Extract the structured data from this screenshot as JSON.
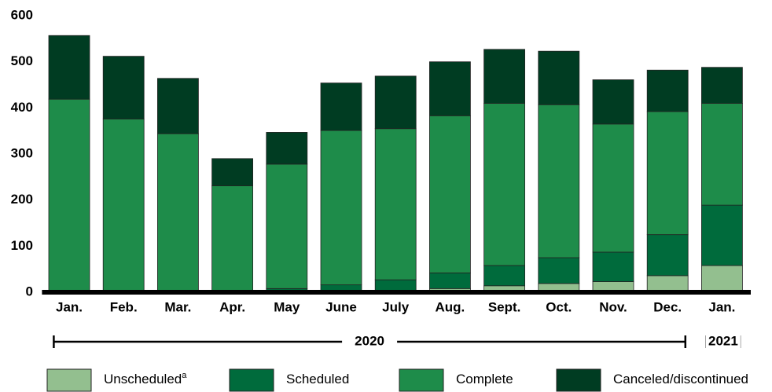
{
  "chart_data": {
    "type": "stacked_bar",
    "categories": [
      "Jan.",
      "Feb.",
      "Mar.",
      "Apr.",
      "May",
      "June",
      "July",
      "Aug.",
      "Sept.",
      "Oct.",
      "Nov.",
      "Dec.",
      "Jan."
    ],
    "years": [
      {
        "label": "2020",
        "from": 0,
        "to": 11
      },
      {
        "label": "2021",
        "from": 12,
        "to": 12
      }
    ],
    "legend_footnote": "a",
    "series": [
      {
        "name": "Unscheduled",
        "color": "#93bf8f",
        "values": [
          0,
          0,
          0,
          0,
          1,
          1,
          4,
          8,
          14,
          19,
          23,
          36,
          58
        ]
      },
      {
        "name": "Scheduled",
        "color": "#006b3c",
        "values": [
          2,
          3,
          4,
          4,
          7,
          15,
          23,
          34,
          44,
          56,
          64,
          89,
          131
        ]
      },
      {
        "name": "Complete",
        "color": "#1e8c4a",
        "values": [
          417,
          373,
          340,
          227,
          270,
          335,
          328,
          341,
          352,
          332,
          278,
          267,
          221
        ]
      },
      {
        "name": "Canceled/discontinued",
        "color": "#003c22",
        "values": [
          138,
          136,
          120,
          59,
          69,
          103,
          114,
          117,
          117,
          116,
          96,
          90,
          78
        ]
      }
    ],
    "ylim": [
      0,
      600
    ],
    "yticks": [
      0,
      100,
      200,
      300,
      400,
      500,
      600
    ]
  }
}
